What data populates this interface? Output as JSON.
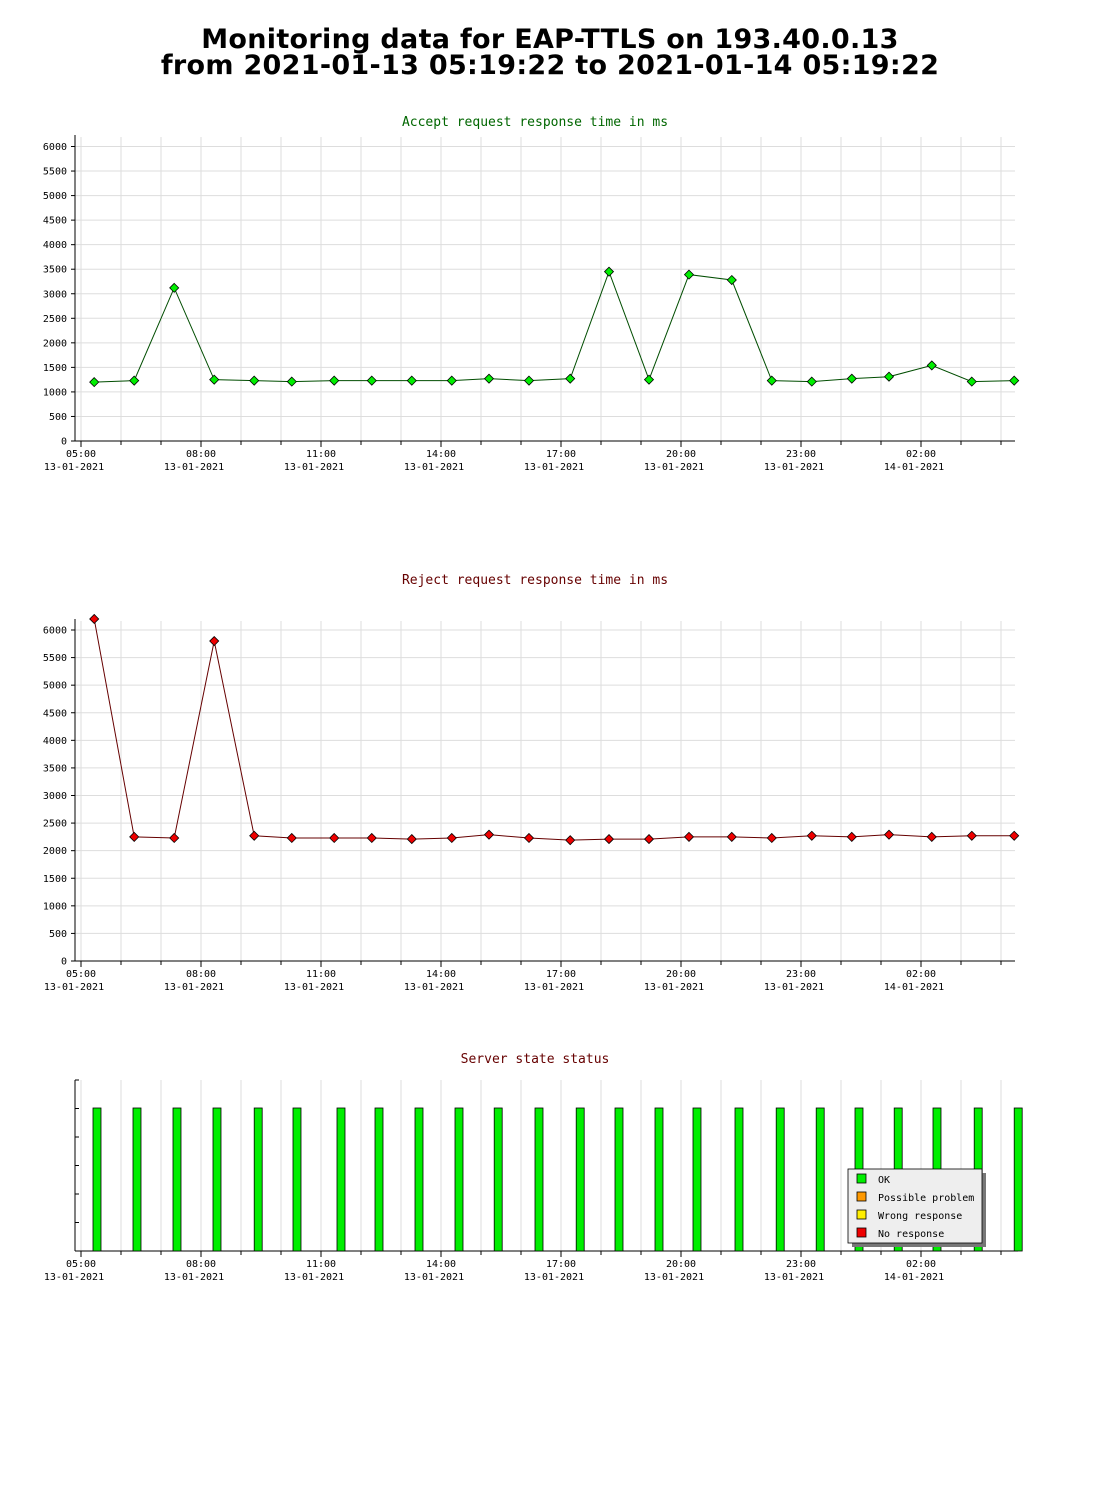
{
  "page": {
    "title_line1": "Monitoring data for EAP-TTLS on 193.40.0.13",
    "title_line2": "from 2021-01-13 05:19:22 to 2021-01-14 05:19:22"
  },
  "colors": {
    "accept_title": "#006600",
    "reject_title": "#660000",
    "status_title": "#660000",
    "accept_line": "#004d00",
    "accept_marker": "#00ee00",
    "reject_line": "#660000",
    "reject_marker": "#ee0000",
    "ok": "#00ee00",
    "possible_problem": "#ff9900",
    "wrong_response": "#ffee00",
    "no_response": "#ee0000",
    "grid": "#dddddd"
  },
  "x_axis": {
    "tick_times": [
      "05:00",
      "08:00",
      "11:00",
      "14:00",
      "17:00",
      "20:00",
      "23:00",
      "02:00"
    ],
    "tick_dates": [
      "13-01-2021",
      "13-01-2021",
      "13-01-2021",
      "13-01-2021",
      "13-01-2021",
      "13-01-2021",
      "13-01-2021",
      "14-01-2021"
    ]
  },
  "chart_data": [
    {
      "id": "accept",
      "type": "line",
      "title": "Accept request response time in ms",
      "x_unit": "hours since 05:00 13-01-2021",
      "xlim": [
        0,
        23.5
      ],
      "ylim": [
        0,
        6250
      ],
      "yticks": [
        0,
        500,
        1000,
        1500,
        2000,
        2500,
        3000,
        3500,
        4000,
        4500,
        5000,
        5500,
        6000
      ],
      "grid": true,
      "points": [
        [
          0.33,
          1200
        ],
        [
          1.33,
          1230
        ],
        [
          2.33,
          3120
        ],
        [
          3.33,
          1250
        ],
        [
          4.33,
          1230
        ],
        [
          5.27,
          1210
        ],
        [
          6.33,
          1230
        ],
        [
          7.27,
          1230
        ],
        [
          8.27,
          1230
        ],
        [
          9.27,
          1230
        ],
        [
          10.2,
          1270
        ],
        [
          11.2,
          1230
        ],
        [
          12.23,
          1270
        ],
        [
          13.2,
          3450
        ],
        [
          14.2,
          1250
        ],
        [
          15.2,
          3390
        ],
        [
          16.27,
          3280
        ],
        [
          17.27,
          1230
        ],
        [
          18.27,
          1210
        ],
        [
          19.27,
          1270
        ],
        [
          20.2,
          1310
        ],
        [
          21.27,
          1540
        ],
        [
          22.27,
          1210
        ],
        [
          23.33,
          1230
        ]
      ]
    },
    {
      "id": "reject",
      "type": "line",
      "title": "Reject request response time in ms",
      "x_unit": "hours since 05:00 13-01-2021",
      "xlim": [
        0,
        23.5
      ],
      "ylim": [
        0,
        6250
      ],
      "yticks": [
        0,
        500,
        1000,
        1500,
        2000,
        2500,
        3000,
        3500,
        4000,
        4500,
        5000,
        5500,
        6000
      ],
      "grid": true,
      "points": [
        [
          0.33,
          6200
        ],
        [
          1.33,
          2250
        ],
        [
          2.33,
          2230
        ],
        [
          3.33,
          5800
        ],
        [
          4.33,
          2270
        ],
        [
          5.27,
          2230
        ],
        [
          6.33,
          2230
        ],
        [
          7.27,
          2230
        ],
        [
          8.27,
          2210
        ],
        [
          9.27,
          2230
        ],
        [
          10.2,
          2290
        ],
        [
          11.2,
          2230
        ],
        [
          12.23,
          2190
        ],
        [
          13.2,
          2210
        ],
        [
          14.2,
          2210
        ],
        [
          15.2,
          2250
        ],
        [
          16.27,
          2250
        ],
        [
          17.27,
          2230
        ],
        [
          18.27,
          2270
        ],
        [
          19.27,
          2250
        ],
        [
          20.2,
          2290
        ],
        [
          21.27,
          2250
        ],
        [
          22.27,
          2270
        ],
        [
          23.33,
          2270
        ]
      ]
    },
    {
      "id": "status",
      "type": "bar",
      "title": "Server state status",
      "x_unit": "hours since 05:00 13-01-2021",
      "xlim": [
        0,
        23.5
      ],
      "bars": [
        [
          0.4,
          "ok"
        ],
        [
          1.4,
          "ok"
        ],
        [
          2.4,
          "ok"
        ],
        [
          3.4,
          "ok"
        ],
        [
          4.43,
          "ok"
        ],
        [
          5.4,
          "ok"
        ],
        [
          6.5,
          "ok"
        ],
        [
          7.45,
          "ok"
        ],
        [
          8.45,
          "ok"
        ],
        [
          9.45,
          "ok"
        ],
        [
          10.43,
          "ok"
        ],
        [
          11.45,
          "ok"
        ],
        [
          12.48,
          "ok"
        ],
        [
          13.45,
          "ok"
        ],
        [
          14.45,
          "ok"
        ],
        [
          15.4,
          "ok"
        ],
        [
          16.45,
          "ok"
        ],
        [
          17.48,
          "ok"
        ],
        [
          18.48,
          "ok"
        ],
        [
          19.45,
          "ok"
        ],
        [
          20.43,
          "ok"
        ],
        [
          21.4,
          "ok"
        ],
        [
          22.43,
          "ok"
        ],
        [
          23.43,
          "ok"
        ]
      ],
      "legend": {
        "placement": "bottom-right",
        "entries": [
          {
            "key": "ok",
            "label": "OK"
          },
          {
            "key": "possible_problem",
            "label": "Possible problem"
          },
          {
            "key": "wrong_response",
            "label": "Wrong response"
          },
          {
            "key": "no_response",
            "label": "No response"
          }
        ]
      }
    }
  ]
}
